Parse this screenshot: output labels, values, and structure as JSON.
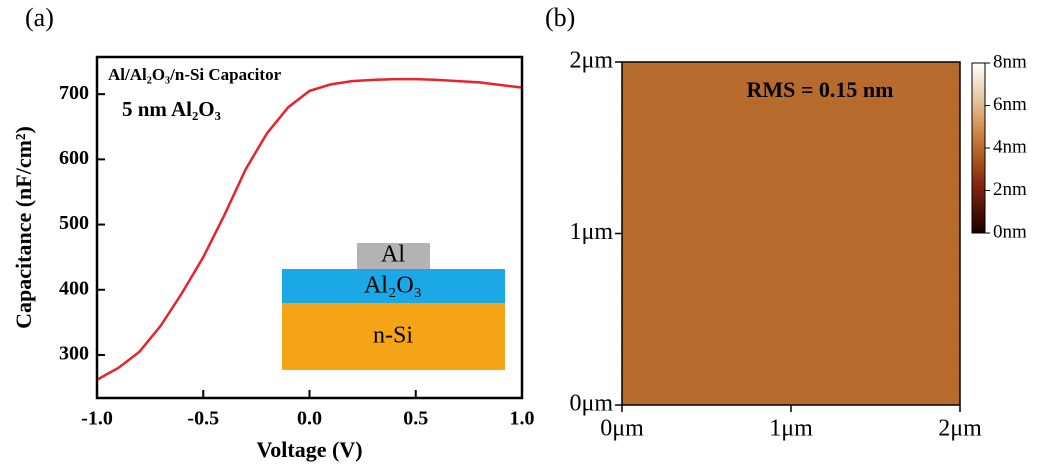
{
  "chart_data": [
    {
      "type": "line",
      "panel_label": "(a)",
      "x_label": "Voltage (V)",
      "y_label": "Capacitance (nF/cm²)",
      "annotations": [
        "Al/Al₂O₃/n-Si Capacitor",
        "5 nm Al₂O₃"
      ],
      "inset_labels": [
        "Al",
        "Al₂O₃",
        "n-Si"
      ],
      "x": [
        -1.0,
        -0.9,
        -0.8,
        -0.7,
        -0.6,
        -0.5,
        -0.4,
        -0.3,
        -0.2,
        -0.1,
        0.0,
        0.1,
        0.2,
        0.3,
        0.4,
        0.5,
        0.6,
        0.7,
        0.8,
        0.9,
        1.0
      ],
      "series": [
        {
          "color": "#e8232a",
          "values": [
            262,
            280,
            305,
            345,
            395,
            450,
            515,
            585,
            640,
            680,
            705,
            715,
            720,
            722,
            723,
            723,
            722,
            720,
            718,
            714,
            710
          ]
        }
      ],
      "xlim": [
        -1,
        1
      ],
      "ylim": [
        234,
        757
      ],
      "xticks": [
        {
          "value": -1,
          "label": "-1.0"
        },
        {
          "value": -0.5,
          "label": "-0.5"
        },
        {
          "value": 0,
          "label": "0.0"
        },
        {
          "value": 0.5,
          "label": "0.5"
        },
        {
          "value": 1,
          "label": "1.0"
        }
      ],
      "yticks": [
        300,
        400,
        500,
        600,
        700
      ]
    },
    {
      "type": "image",
      "panel_label": "(b)",
      "annotation": "RMS = 0.15 nm",
      "color": "#b66a2c",
      "xlim": [
        0,
        2
      ],
      "ylim": [
        0,
        2
      ],
      "xticks": [
        {
          "value": 0,
          "label": "0μm"
        },
        {
          "value": 1,
          "label": "1μm"
        },
        {
          "value": 2,
          "label": "2μm"
        }
      ],
      "yticks": [
        {
          "value": 0,
          "label": "0μm"
        },
        {
          "value": 1,
          "label": "1μm"
        },
        {
          "value": 2,
          "label": "2μm"
        }
      ],
      "colorbar": {
        "lim": [
          0,
          8
        ],
        "ticks": [
          {
            "value": 0,
            "label": "0nm"
          },
          {
            "value": 2,
            "label": "2nm"
          },
          {
            "value": 4,
            "label": "4nm"
          },
          {
            "value": 6,
            "label": "6nm"
          },
          {
            "value": 8,
            "label": "8nm"
          }
        ]
      }
    }
  ]
}
